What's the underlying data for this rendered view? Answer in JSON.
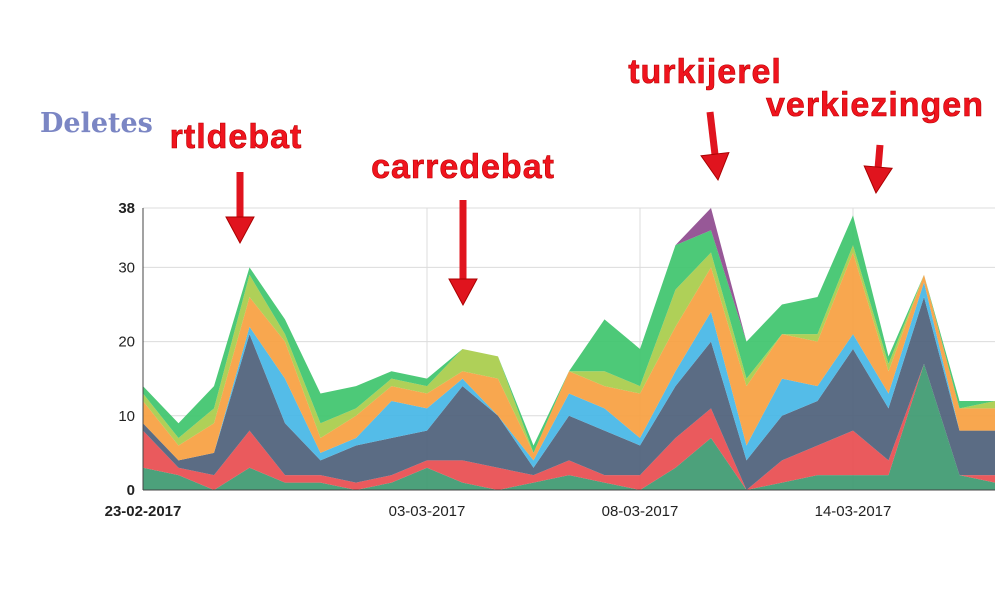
{
  "chart_data": {
    "type": "stacked-area",
    "title": "Deletes",
    "annotations": [
      "rtldebat",
      "carredebat",
      "turkijerel",
      "verkiezingen"
    ],
    "categories": [
      "23-02-2017",
      null,
      null,
      null,
      null,
      null,
      null,
      null,
      "03-03-2017",
      null,
      null,
      null,
      null,
      null,
      "08-03-2017",
      null,
      null,
      null,
      null,
      null,
      "14-03-2017",
      null,
      null,
      null,
      null
    ],
    "ylim": [
      0,
      38
    ],
    "yticks": [
      0,
      10,
      20,
      30,
      38
    ],
    "grid": true,
    "series": [
      {
        "color": "#3d9970",
        "values": [
          3,
          2,
          0,
          3,
          1,
          1,
          0,
          1,
          3,
          1,
          0,
          1,
          2,
          1,
          0,
          3,
          7,
          0,
          1,
          2,
          2,
          2,
          17,
          2,
          1
        ]
      },
      {
        "color": "#e84c4f",
        "values": [
          5,
          1,
          2,
          5,
          1,
          1,
          1,
          1,
          1,
          3,
          3,
          1,
          2,
          1,
          2,
          4,
          4,
          0,
          3,
          4,
          6,
          2,
          0,
          0,
          1
        ]
      },
      {
        "color": "#4d5f7a",
        "values": [
          1,
          1,
          3,
          13,
          7,
          2,
          5,
          5,
          4,
          10,
          7,
          1,
          6,
          6,
          4,
          7,
          9,
          4,
          6,
          6,
          11,
          7,
          9,
          6,
          6
        ]
      },
      {
        "color": "#45b6e6",
        "values": [
          0,
          0,
          0,
          1,
          6,
          1,
          1,
          5,
          3,
          1,
          0,
          1,
          3,
          3,
          1,
          2,
          4,
          2,
          5,
          2,
          2,
          2,
          2,
          0,
          0
        ]
      },
      {
        "color": "#f7a040",
        "values": [
          3,
          2,
          4,
          4,
          5,
          2,
          3,
          2,
          2,
          1,
          5,
          1,
          3,
          3,
          6,
          6,
          6,
          8,
          6,
          6,
          11,
          3,
          1,
          3,
          3
        ]
      },
      {
        "color": "#a8cc4a",
        "values": [
          1,
          1,
          2,
          3,
          1,
          2,
          1,
          1,
          1,
          3,
          3,
          0,
          0,
          2,
          1,
          5,
          2,
          1,
          0,
          1,
          1,
          1,
          0,
          0,
          1
        ]
      },
      {
        "color": "#3ec46c",
        "values": [
          1,
          2,
          3,
          1,
          2,
          4,
          3,
          1,
          1,
          0,
          0,
          1,
          0,
          7,
          5,
          6,
          3,
          5,
          4,
          5,
          4,
          1,
          0,
          1,
          0
        ]
      },
      {
        "color": "#8e4a8e",
        "values": [
          0,
          0,
          0,
          0,
          0,
          0,
          0,
          0,
          0,
          0,
          0,
          0,
          0,
          0,
          0,
          0,
          3,
          0,
          0,
          0,
          0,
          0,
          0,
          0,
          0
        ]
      }
    ]
  }
}
